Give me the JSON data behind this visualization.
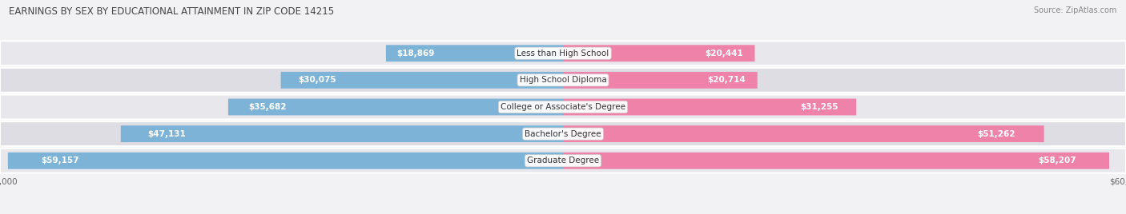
{
  "title": "EARNINGS BY SEX BY EDUCATIONAL ATTAINMENT IN ZIP CODE 14215",
  "source": "Source: ZipAtlas.com",
  "categories": [
    "Less than High School",
    "High School Diploma",
    "College or Associate's Degree",
    "Bachelor's Degree",
    "Graduate Degree"
  ],
  "male_values": [
    18869,
    30075,
    35682,
    47131,
    59157
  ],
  "female_values": [
    20441,
    20714,
    31255,
    51262,
    58207
  ],
  "max_value": 60000,
  "male_color": "#7eb3d8",
  "female_color": "#ee82a8",
  "male_color_dark": "#5a9ac8",
  "female_color_dark": "#e05588",
  "label_color_inside": "#ffffff",
  "bar_height": 0.62,
  "row_bg_color": "#e8e8ec",
  "row_bg_alt": "#dddde3",
  "background_color": "#f2f2f5",
  "title_fontsize": 8.5,
  "source_fontsize": 7.0,
  "value_fontsize": 7.5,
  "cat_fontsize": 7.5
}
